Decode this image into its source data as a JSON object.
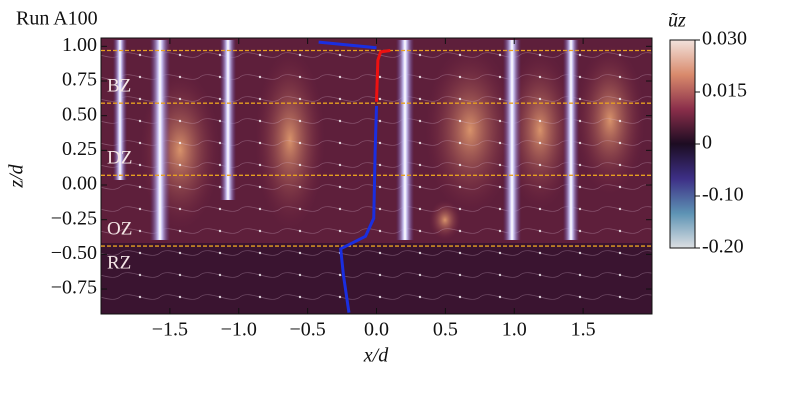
{
  "chart_data": {
    "type": "heatmap",
    "title": "Run A100",
    "x_label": "x/d",
    "y_label": "z/d",
    "xlim": [
      -2,
      2
    ],
    "ylim": [
      -0.93,
      1.06
    ],
    "xticks": [
      {
        "value": -1.5,
        "label": "−1.5"
      },
      {
        "value": -1,
        "label": "−1.0"
      },
      {
        "value": -0.5,
        "label": "−0.5"
      },
      {
        "value": 0,
        "label": "0.0"
      },
      0.5,
      {
        "value": 1,
        "label": "1.0"
      },
      1.5
    ],
    "yticks": [
      {
        "value": 1,
        "label": "1.00"
      },
      0.75,
      {
        "value": 0.5,
        "label": "0.50"
      },
      0.25,
      {
        "value": 0,
        "label": "0.00"
      },
      {
        "value": -0.25,
        "label": "−0.25"
      },
      {
        "value": -0.5,
        "label": "−0.50"
      },
      {
        "value": -0.75,
        "label": "−0.75"
      }
    ],
    "zone_boundaries": [
      0.97,
      0.59,
      0.07,
      -0.44
    ],
    "zone_boundary_color": "#e8a020",
    "zone_labels": [
      "BZ",
      "DZ",
      "OZ",
      "RZ"
    ],
    "series": [
      {
        "color": "#1a2ee0",
        "x": [
          -0.42,
          0,
          null,
          0,
          -0.01,
          -0.02,
          -0.08,
          -0.26,
          -0.24,
          -0.2
        ],
        "y": [
          1.03,
          0.99,
          null,
          0.57,
          0.24,
          -0.24,
          -0.37,
          -0.46,
          -0.65,
          -0.92
        ]
      },
      {
        "color": "#ee1111",
        "x": [
          0.1,
          0.03,
          0.01,
          0
        ],
        "y": [
          0.97,
          0.96,
          0.9,
          0.6
        ]
      }
    ],
    "colorbar": {
      "label": "ũz",
      "ticks": [
        {
          "value": 0.03,
          "label": "0.030"
        },
        {
          "value": 0.015,
          "label": "0.015"
        },
        0,
        {
          "value": -0.1,
          "label": "-0.10"
        },
        {
          "value": -0.2,
          "label": "-0.20"
        }
      ],
      "colors": [
        "#f2e2dc",
        "#d98a6c",
        "#8a2e4a",
        "#1c0c22",
        "#3d2f86",
        "#5d93b4",
        "#dcdfe2"
      ]
    }
  }
}
